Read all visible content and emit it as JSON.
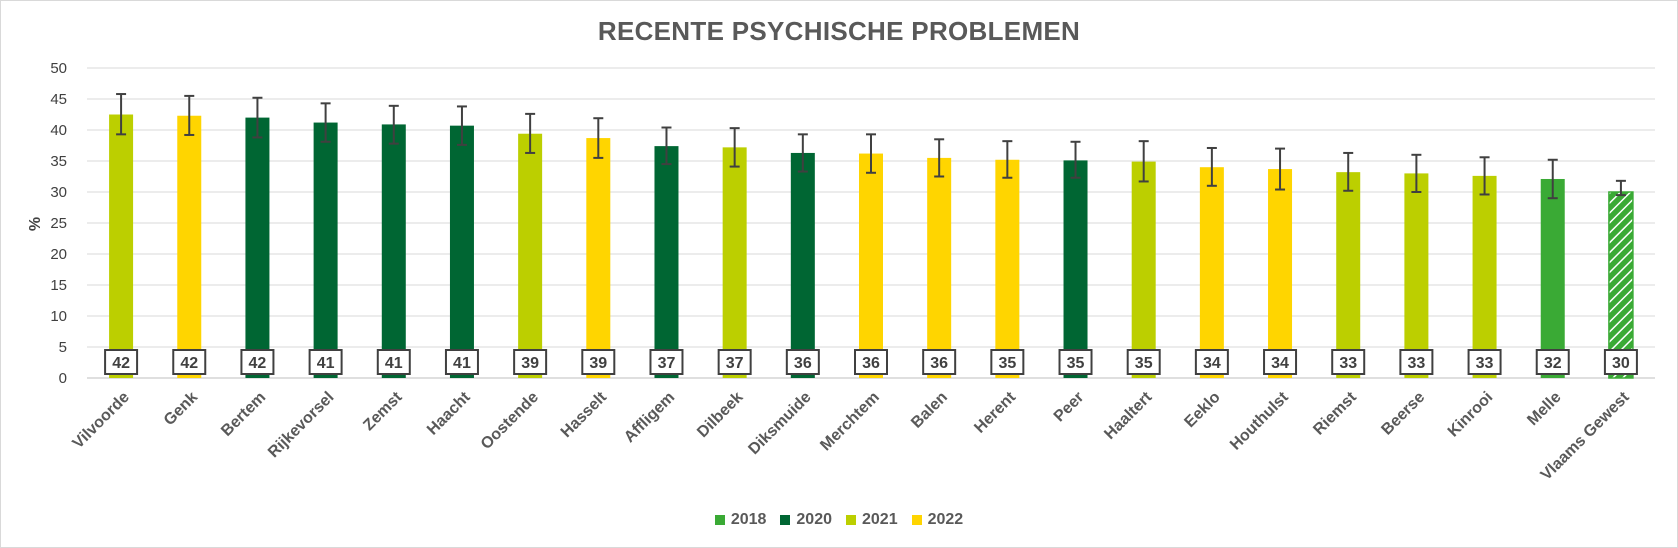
{
  "chart_data": {
    "type": "bar",
    "title": "RECENTE PSYCHISCHE PROBLEMEN",
    "ylabel": "%",
    "xlabel": "",
    "ylim": [
      0,
      50
    ],
    "yticks": [
      "0",
      "5",
      "10",
      "15",
      "20",
      "25",
      "30",
      "35",
      "40",
      "45",
      "50"
    ],
    "grid": "horizontal",
    "legend_position": "bottom",
    "colors": {
      "2018": "#3aaa35",
      "2020": "#006633",
      "2021": "#bccf00",
      "2022": "#ffd500"
    },
    "legend": [
      "2018",
      "2020",
      "2021",
      "2022"
    ],
    "categories": [
      "Vilvoorde",
      "Genk",
      "Bertem",
      "Rijkevorsel",
      "Zemst",
      "Haacht",
      "Oostende",
      "Hasselt",
      "Affligem",
      "Dilbeek",
      "Diksmuide",
      "Merchtem",
      "Balen",
      "Herent",
      "Peer",
      "Haaltert",
      "Eeklo",
      "Houthulst",
      "Riemst",
      "Beerse",
      "Kinrooi",
      "Melle",
      "Vlaams Gewest"
    ],
    "values": [
      42.5,
      42.3,
      42.0,
      41.2,
      40.9,
      40.7,
      39.4,
      38.7,
      37.4,
      37.2,
      36.3,
      36.2,
      35.5,
      35.2,
      35.1,
      34.9,
      34.0,
      33.7,
      33.2,
      33.0,
      32.6,
      32.1,
      30.0
    ],
    "error_low": [
      39.3,
      39.2,
      38.8,
      38.1,
      37.8,
      37.6,
      36.3,
      35.5,
      34.5,
      34.1,
      33.3,
      33.1,
      32.5,
      32.3,
      32.3,
      31.7,
      31.0,
      30.4,
      30.2,
      30.0,
      29.6,
      29.0,
      29.5
    ],
    "error_high": [
      45.8,
      45.5,
      45.2,
      44.3,
      43.9,
      43.8,
      42.6,
      41.9,
      40.4,
      40.3,
      39.3,
      39.3,
      38.5,
      38.2,
      38.1,
      38.2,
      37.1,
      37.0,
      36.3,
      36.0,
      35.6,
      35.2,
      31.8
    ],
    "labels": [
      "42",
      "42",
      "42",
      "41",
      "41",
      "41",
      "39",
      "39",
      "37",
      "37",
      "36",
      "36",
      "36",
      "35",
      "35",
      "35",
      "34",
      "34",
      "33",
      "33",
      "33",
      "32",
      "30"
    ],
    "series_year": [
      "2021",
      "2022",
      "2020",
      "2020",
      "2020",
      "2020",
      "2021",
      "2022",
      "2020",
      "2021",
      "2020",
      "2022",
      "2022",
      "2022",
      "2020",
      "2021",
      "2022",
      "2022",
      "2021",
      "2021",
      "2021",
      "2018",
      "2018"
    ],
    "hatched": [
      false,
      false,
      false,
      false,
      false,
      false,
      false,
      false,
      false,
      false,
      false,
      false,
      false,
      false,
      false,
      false,
      false,
      false,
      false,
      false,
      false,
      false,
      true
    ]
  }
}
